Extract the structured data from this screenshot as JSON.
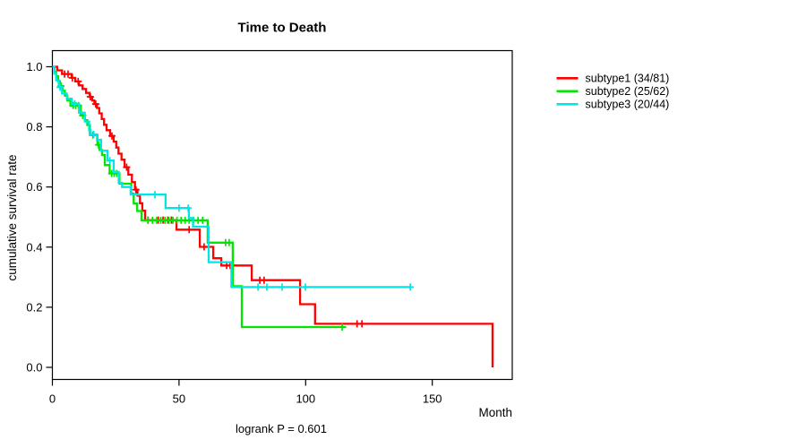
{
  "chart_data": {
    "type": "line",
    "variant": "kaplan-meier-step",
    "title": "Time to Death",
    "xlabel": "Month",
    "ylabel": "cumulative survival rate",
    "annotation": "logrank P = 0.601",
    "grid": false,
    "legend_position": "right-outside",
    "xlim": [
      0,
      181
    ],
    "ylim": [
      0.0,
      1.0
    ],
    "xticks": [
      0,
      50,
      100,
      150
    ],
    "ytick_labels": [
      "0.0",
      "0.2",
      "0.4",
      "0.6",
      "0.8",
      "1.0"
    ],
    "series": [
      {
        "name": "subtype1 (34/81)",
        "label": "subtype1",
        "events": 34,
        "n": 81,
        "color": "#ff0000",
        "points": [
          [
            0,
            1.0
          ],
          [
            1.9,
            0.988
          ],
          [
            3.8,
            0.976
          ],
          [
            7.6,
            0.963
          ],
          [
            9.0,
            0.951
          ],
          [
            10.5,
            0.938
          ],
          [
            11.9,
            0.926
          ],
          [
            13.3,
            0.913
          ],
          [
            14.7,
            0.9
          ],
          [
            15.7,
            0.888
          ],
          [
            16.6,
            0.876
          ],
          [
            17.6,
            0.863
          ],
          [
            18.5,
            0.845
          ],
          [
            19.5,
            0.826
          ],
          [
            20.4,
            0.807
          ],
          [
            21.4,
            0.789
          ],
          [
            22.8,
            0.77
          ],
          [
            24.2,
            0.751
          ],
          [
            25.2,
            0.731
          ],
          [
            26.1,
            0.711
          ],
          [
            27.3,
            0.691
          ],
          [
            28.5,
            0.666
          ],
          [
            30.0,
            0.641
          ],
          [
            31.4,
            0.616
          ],
          [
            32.6,
            0.591
          ],
          [
            33.6,
            0.571
          ],
          [
            34.6,
            0.546
          ],
          [
            35.5,
            0.521
          ],
          [
            36.6,
            0.49
          ],
          [
            49.0,
            0.458
          ],
          [
            58.2,
            0.401
          ],
          [
            63.5,
            0.363
          ],
          [
            66.7,
            0.339
          ],
          [
            78.7,
            0.29
          ],
          [
            97.8,
            0.21
          ],
          [
            103.7,
            0.145
          ],
          [
            173.8,
            0.0
          ]
        ],
        "censors": [
          [
            4.8,
            0.976
          ],
          [
            6.2,
            0.976
          ],
          [
            7.9,
            0.963
          ],
          [
            10.2,
            0.951
          ],
          [
            15.0,
            0.9
          ],
          [
            17.1,
            0.876
          ],
          [
            23.5,
            0.77
          ],
          [
            29.3,
            0.666
          ],
          [
            33.0,
            0.591
          ],
          [
            37.8,
            0.49
          ],
          [
            41.8,
            0.49
          ],
          [
            43.7,
            0.49
          ],
          [
            45.6,
            0.49
          ],
          [
            47.0,
            0.49
          ],
          [
            54.0,
            0.458
          ],
          [
            59.9,
            0.401
          ],
          [
            68.8,
            0.339
          ],
          [
            70.2,
            0.339
          ],
          [
            81.9,
            0.29
          ],
          [
            83.6,
            0.29
          ],
          [
            120.3,
            0.145
          ],
          [
            122.2,
            0.145
          ]
        ]
      },
      {
        "name": "subtype2 (25/62)",
        "label": "subtype2",
        "events": 25,
        "n": 62,
        "color": "#00e600",
        "points": [
          [
            0,
            1.0
          ],
          [
            0.8,
            0.984
          ],
          [
            1.5,
            0.968
          ],
          [
            2.3,
            0.952
          ],
          [
            3.0,
            0.936
          ],
          [
            4.0,
            0.92
          ],
          [
            4.9,
            0.904
          ],
          [
            5.9,
            0.888
          ],
          [
            7.1,
            0.871
          ],
          [
            11.2,
            0.838
          ],
          [
            12.8,
            0.822
          ],
          [
            13.8,
            0.806
          ],
          [
            14.8,
            0.773
          ],
          [
            17.8,
            0.74
          ],
          [
            18.6,
            0.723
          ],
          [
            19.6,
            0.706
          ],
          [
            20.7,
            0.673
          ],
          [
            22.6,
            0.645
          ],
          [
            26.5,
            0.611
          ],
          [
            31.1,
            0.578
          ],
          [
            32.1,
            0.545
          ],
          [
            33.5,
            0.52
          ],
          [
            35.2,
            0.489
          ],
          [
            61.3,
            0.415
          ],
          [
            71.2,
            0.27
          ],
          [
            74.8,
            0.134
          ],
          [
            116.0,
            0.134
          ]
        ],
        "censors": [
          [
            3.4,
            0.936
          ],
          [
            8.2,
            0.871
          ],
          [
            9.2,
            0.871
          ],
          [
            10.3,
            0.871
          ],
          [
            12.0,
            0.838
          ],
          [
            16.0,
            0.773
          ],
          [
            18.2,
            0.74
          ],
          [
            23.4,
            0.645
          ],
          [
            24.4,
            0.645
          ],
          [
            25.4,
            0.645
          ],
          [
            37.7,
            0.489
          ],
          [
            39.5,
            0.489
          ],
          [
            41.2,
            0.489
          ],
          [
            42.8,
            0.489
          ],
          [
            44.4,
            0.489
          ],
          [
            46.0,
            0.489
          ],
          [
            47.6,
            0.489
          ],
          [
            49.2,
            0.489
          ],
          [
            50.8,
            0.489
          ],
          [
            52.4,
            0.489
          ],
          [
            54.0,
            0.489
          ],
          [
            55.7,
            0.489
          ],
          [
            57.5,
            0.489
          ],
          [
            59.3,
            0.489
          ],
          [
            68.4,
            0.415
          ],
          [
            69.8,
            0.415
          ],
          [
            114.4,
            0.134
          ]
        ]
      },
      {
        "name": "subtype3 (20/44)",
        "label": "subtype3",
        "events": 20,
        "n": 44,
        "color": "#00e6e6",
        "points": [
          [
            0,
            1.0
          ],
          [
            0.8,
            0.977
          ],
          [
            1.5,
            0.955
          ],
          [
            2.5,
            0.932
          ],
          [
            3.8,
            0.911
          ],
          [
            5.7,
            0.894
          ],
          [
            7.6,
            0.877
          ],
          [
            10.5,
            0.847
          ],
          [
            12.8,
            0.818
          ],
          [
            14.5,
            0.789
          ],
          [
            15.1,
            0.775
          ],
          [
            17.6,
            0.757
          ],
          [
            19.2,
            0.721
          ],
          [
            21.7,
            0.688
          ],
          [
            24.2,
            0.65
          ],
          [
            26.2,
            0.614
          ],
          [
            27.5,
            0.6
          ],
          [
            30.9,
            0.575
          ],
          [
            44.7,
            0.53
          ],
          [
            53.9,
            0.497
          ],
          [
            55.5,
            0.468
          ],
          [
            61.7,
            0.35
          ],
          [
            70.7,
            0.267
          ],
          [
            141.3,
            0.267
          ]
        ],
        "censors": [
          [
            3.0,
            0.932
          ],
          [
            8.8,
            0.877
          ],
          [
            16.3,
            0.775
          ],
          [
            22.7,
            0.688
          ],
          [
            40.5,
            0.575
          ],
          [
            50.0,
            0.53
          ],
          [
            53.6,
            0.53
          ],
          [
            81.2,
            0.267
          ],
          [
            84.7,
            0.267
          ],
          [
            90.7,
            0.267
          ],
          [
            99.9,
            0.267
          ],
          [
            141.3,
            0.267
          ]
        ]
      }
    ]
  }
}
